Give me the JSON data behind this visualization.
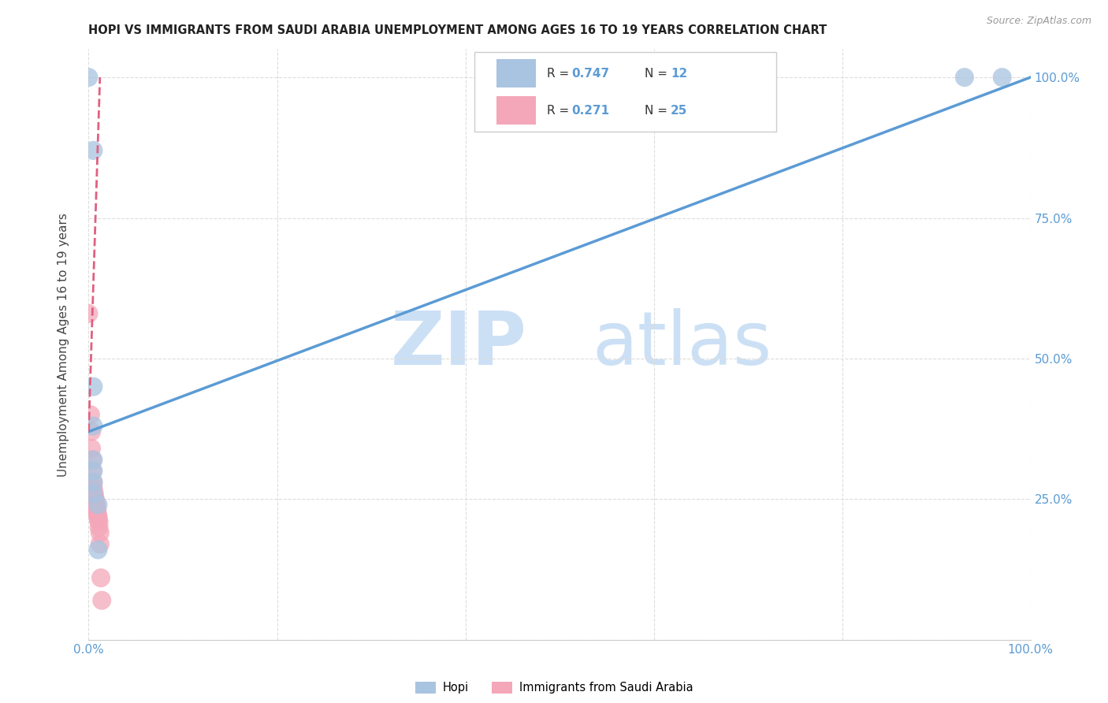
{
  "title": "HOPI VS IMMIGRANTS FROM SAUDI ARABIA UNEMPLOYMENT AMONG AGES 16 TO 19 YEARS CORRELATION CHART",
  "source": "Source: ZipAtlas.com",
  "ylabel": "Unemployment Among Ages 16 to 19 years",
  "xlim": [
    0.0,
    1.0
  ],
  "ylim": [
    0.0,
    1.05
  ],
  "xticks": [
    0.0,
    0.2,
    0.4,
    0.6,
    0.8,
    1.0
  ],
  "yticks": [
    0.0,
    0.25,
    0.5,
    0.75,
    1.0
  ],
  "xticklabels": [
    "0.0%",
    "",
    "",
    "",
    "",
    "100.0%"
  ],
  "yticklabels": [
    "",
    "25.0%",
    "50.0%",
    "75.0%",
    "100.0%"
  ],
  "watermark_zip": "ZIP",
  "watermark_atlas": "atlas",
  "hopi_color": "#a8c4e0",
  "saudi_color": "#f4a7b9",
  "hopi_line_color": "#5b9bd5",
  "saudi_line_color": "#e06080",
  "hopi_scatter": [
    [
      0.0,
      1.0
    ],
    [
      0.005,
      0.87
    ],
    [
      0.005,
      0.45
    ],
    [
      0.005,
      0.38
    ],
    [
      0.005,
      0.32
    ],
    [
      0.005,
      0.3
    ],
    [
      0.005,
      0.28
    ],
    [
      0.005,
      0.26
    ],
    [
      0.01,
      0.24
    ],
    [
      0.01,
      0.16
    ],
    [
      0.93,
      1.0
    ],
    [
      0.97,
      1.0
    ]
  ],
  "saudi_scatter": [
    [
      0.0,
      0.58
    ],
    [
      0.002,
      0.4
    ],
    [
      0.003,
      0.37
    ],
    [
      0.003,
      0.34
    ],
    [
      0.004,
      0.32
    ],
    [
      0.004,
      0.3
    ],
    [
      0.005,
      0.28
    ],
    [
      0.005,
      0.27
    ],
    [
      0.005,
      0.265
    ],
    [
      0.006,
      0.26
    ],
    [
      0.006,
      0.255
    ],
    [
      0.007,
      0.25
    ],
    [
      0.007,
      0.245
    ],
    [
      0.008,
      0.24
    ],
    [
      0.008,
      0.235
    ],
    [
      0.009,
      0.23
    ],
    [
      0.009,
      0.225
    ],
    [
      0.01,
      0.22
    ],
    [
      0.01,
      0.215
    ],
    [
      0.011,
      0.21
    ],
    [
      0.011,
      0.2
    ],
    [
      0.012,
      0.19
    ],
    [
      0.012,
      0.17
    ],
    [
      0.013,
      0.11
    ],
    [
      0.014,
      0.07
    ]
  ],
  "hopi_line_x": [
    0.0,
    1.0
  ],
  "hopi_line_y": [
    0.37,
    1.0
  ],
  "saudi_line_x": [
    0.0,
    0.012
  ],
  "saudi_line_y": [
    0.37,
    1.0
  ],
  "background_color": "#ffffff",
  "grid_color": "#dddddd",
  "legend_R1": "0.747",
  "legend_N1": "12",
  "legend_R2": "0.271",
  "legend_N2": "25"
}
